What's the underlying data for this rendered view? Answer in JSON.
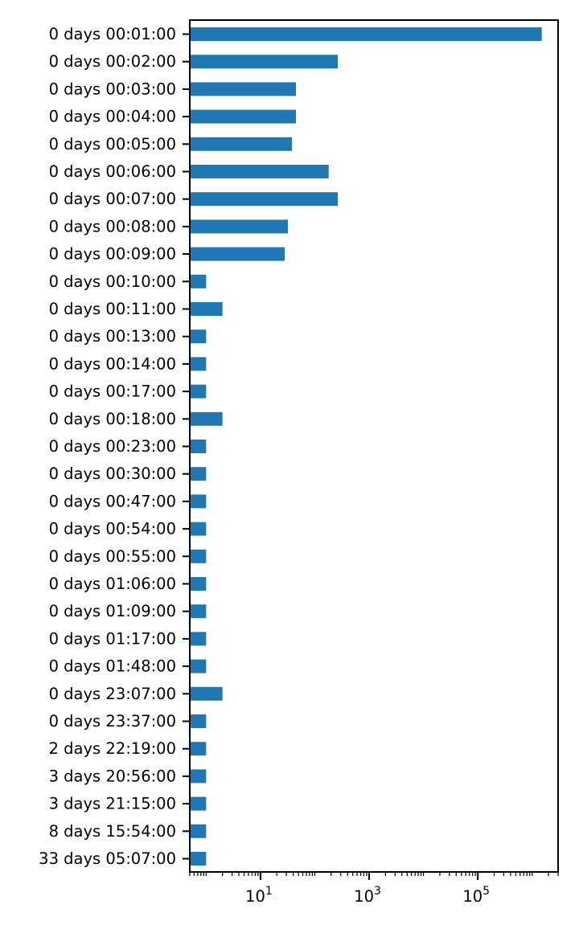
{
  "chart_data": {
    "type": "bar",
    "orientation": "horizontal",
    "title": "",
    "xlabel": "",
    "ylabel": "",
    "x_scale": "log",
    "xlim": [
      0.5,
      3000000
    ],
    "x_ticks": [
      {
        "value": 10,
        "base": "10",
        "exp": "1"
      },
      {
        "value": 1000,
        "base": "10",
        "exp": "3"
      },
      {
        "value": 100000,
        "base": "10",
        "exp": "5"
      }
    ],
    "grid": false,
    "legend": "none",
    "bar_color": "#1f77b4",
    "categories": [
      "0 days 00:01:00",
      "0 days 00:02:00",
      "0 days 00:03:00",
      "0 days 00:04:00",
      "0 days 00:05:00",
      "0 days 00:06:00",
      "0 days 00:07:00",
      "0 days 00:08:00",
      "0 days 00:09:00",
      "0 days 00:10:00",
      "0 days 00:11:00",
      "0 days 00:13:00",
      "0 days 00:14:00",
      "0 days 00:17:00",
      "0 days 00:18:00",
      "0 days 00:23:00",
      "0 days 00:30:00",
      "0 days 00:47:00",
      "0 days 00:54:00",
      "0 days 00:55:00",
      "0 days 01:06:00",
      "0 days 01:09:00",
      "0 days 01:17:00",
      "0 days 01:48:00",
      "0 days 23:07:00",
      "0 days 23:37:00",
      "2 days 22:19:00",
      "3 days 20:56:00",
      "3 days 21:15:00",
      "8 days 15:54:00",
      "33 days 05:07:00"
    ],
    "values": [
      1500000,
      265,
      45,
      45,
      38,
      180,
      265,
      32,
      28,
      1,
      2,
      1,
      1,
      1,
      2,
      1,
      1,
      1,
      1,
      1,
      1,
      1,
      1,
      1,
      2,
      1,
      1,
      1,
      1,
      1,
      1
    ]
  }
}
